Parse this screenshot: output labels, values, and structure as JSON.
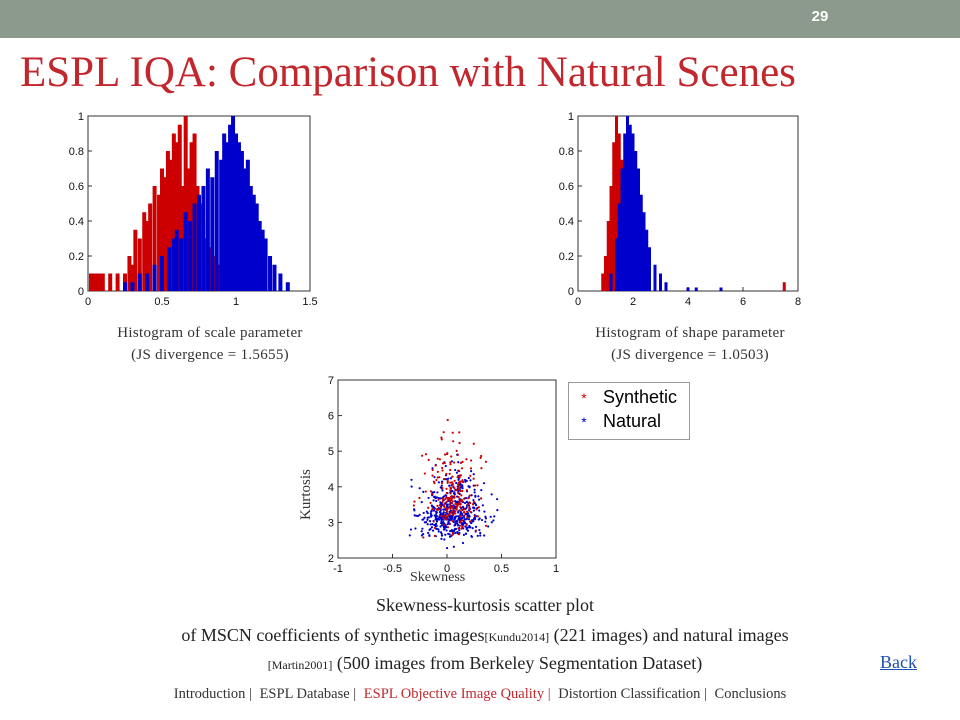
{
  "slide_number": "29",
  "title": "ESPL IQA: Comparison with Natural Scenes",
  "colors": {
    "synthetic": "#cc0000",
    "natural": "#0000cc",
    "title": "#c1272d",
    "topbar": "#8b9a8b"
  },
  "hist_scale": {
    "caption_line1": "Histogram of scale parameter",
    "caption_line2": "(JS divergence = 1.5655)"
  },
  "hist_shape": {
    "caption_line1": "Histogram of shape parameter",
    "caption_line2": "(JS divergence = 1.0503)"
  },
  "scatter": {
    "xlabel": "Skewness",
    "ylabel": "Kurtosis",
    "legend": {
      "synthetic": "Synthetic",
      "natural": "Natural"
    }
  },
  "description": {
    "line1": "Skewness-kurtosis scatter plot",
    "line2_a": "of MSCN coefficients of synthetic images",
    "cite1": "[Kundu2014]",
    "line2_b": " (221 images) and natural images",
    "cite2": "[Martin2001]",
    "line3": " (500 images from Berkeley Segmentation Dataset)"
  },
  "back_link": "Back",
  "footer": {
    "items": [
      "Introduction |",
      "ESPL Database |",
      "ESPL Objective Image Quality |",
      "Distortion Classification |",
      "Conclusions"
    ],
    "active_index": 2
  },
  "chart_data": [
    {
      "type": "bar",
      "name": "scale-parameter-histogram",
      "xlim": [
        0,
        1.5
      ],
      "ylim": [
        0,
        1
      ],
      "xticks": [
        "0",
        "0.5",
        "1",
        "1.5"
      ],
      "yticks": [
        "0",
        "0.2",
        "0.4",
        "0.6",
        "0.8",
        "1"
      ],
      "series": [
        {
          "name": "Synthetic",
          "color": "#cc0000",
          "x": [
            0.02,
            0.04,
            0.06,
            0.08,
            0.1,
            0.15,
            0.2,
            0.25,
            0.28,
            0.3,
            0.32,
            0.35,
            0.38,
            0.4,
            0.42,
            0.45,
            0.48,
            0.5,
            0.52,
            0.54,
            0.56,
            0.58,
            0.6,
            0.62,
            0.64,
            0.66,
            0.68,
            0.7,
            0.72,
            0.74,
            0.76,
            0.78,
            0.8,
            0.82,
            0.85,
            0.88,
            0.92,
            0.95
          ],
          "values": [
            0.1,
            0.1,
            0.1,
            0.1,
            0.1,
            0.1,
            0.1,
            0.1,
            0.2,
            0.15,
            0.35,
            0.3,
            0.45,
            0.4,
            0.5,
            0.6,
            0.55,
            0.7,
            0.65,
            0.8,
            0.75,
            0.9,
            0.85,
            0.95,
            0.6,
            1.0,
            0.7,
            0.85,
            0.9,
            0.6,
            0.5,
            0.4,
            0.3,
            0.25,
            0.2,
            0.15,
            0.1,
            0.05
          ]
        },
        {
          "name": "Natural",
          "color": "#0000cc",
          "x": [
            0.25,
            0.3,
            0.35,
            0.4,
            0.45,
            0.5,
            0.55,
            0.58,
            0.6,
            0.63,
            0.66,
            0.69,
            0.72,
            0.75,
            0.78,
            0.81,
            0.84,
            0.87,
            0.9,
            0.92,
            0.94,
            0.96,
            0.98,
            1.0,
            1.02,
            1.04,
            1.06,
            1.08,
            1.1,
            1.12,
            1.14,
            1.16,
            1.18,
            1.2,
            1.23,
            1.26,
            1.3,
            1.35
          ],
          "values": [
            0.05,
            0.05,
            0.1,
            0.1,
            0.15,
            0.2,
            0.25,
            0.3,
            0.35,
            0.3,
            0.45,
            0.4,
            0.5,
            0.55,
            0.6,
            0.7,
            0.65,
            0.8,
            0.75,
            0.9,
            0.85,
            0.95,
            1.0,
            0.9,
            0.85,
            0.8,
            0.7,
            0.75,
            0.6,
            0.55,
            0.5,
            0.4,
            0.35,
            0.3,
            0.2,
            0.15,
            0.1,
            0.05
          ]
        }
      ]
    },
    {
      "type": "bar",
      "name": "shape-parameter-histogram",
      "xlim": [
        0,
        8
      ],
      "ylim": [
        0,
        1
      ],
      "xticks": [
        "0",
        "2",
        "4",
        "6",
        "8"
      ],
      "yticks": [
        "0",
        "0.2",
        "0.4",
        "0.6",
        "0.8",
        "1"
      ],
      "series": [
        {
          "name": "Synthetic",
          "color": "#cc0000",
          "x": [
            0.9,
            1.0,
            1.1,
            1.2,
            1.3,
            1.4,
            1.5,
            1.6,
            1.7,
            1.8,
            1.9,
            2.0,
            2.1,
            2.2,
            2.4,
            7.5
          ],
          "values": [
            0.1,
            0.2,
            0.4,
            0.6,
            0.85,
            1.0,
            0.9,
            0.75,
            0.6,
            0.45,
            0.3,
            0.2,
            0.15,
            0.1,
            0.05,
            0.05
          ]
        },
        {
          "name": "Natural",
          "color": "#0000cc",
          "x": [
            1.2,
            1.4,
            1.5,
            1.6,
            1.7,
            1.8,
            1.9,
            2.0,
            2.1,
            2.2,
            2.3,
            2.4,
            2.5,
            2.6,
            2.8,
            3.0,
            3.2,
            4.0,
            4.3,
            5.2
          ],
          "values": [
            0.1,
            0.3,
            0.5,
            0.7,
            0.9,
            1.0,
            0.95,
            0.9,
            0.8,
            0.7,
            0.55,
            0.45,
            0.35,
            0.25,
            0.15,
            0.1,
            0.05,
            0.02,
            0.02,
            0.02
          ]
        }
      ]
    },
    {
      "type": "scatter",
      "name": "skewness-kurtosis-scatter",
      "xlim": [
        -1,
        1
      ],
      "ylim": [
        2,
        7
      ],
      "xticks": [
        "-1",
        "-0.5",
        "0",
        "0.5",
        "1"
      ],
      "yticks": [
        "2",
        "3",
        "4",
        "5",
        "6",
        "7"
      ],
      "series": [
        {
          "name": "Synthetic",
          "color": "#cc0000",
          "count": 221,
          "center": [
            0.05,
            3.7
          ],
          "spread": [
            0.12,
            0.55
          ]
        },
        {
          "name": "Natural",
          "color": "#0000cc",
          "count": 500,
          "center": [
            0.05,
            3.2
          ],
          "spread": [
            0.15,
            0.4
          ]
        }
      ]
    }
  ]
}
